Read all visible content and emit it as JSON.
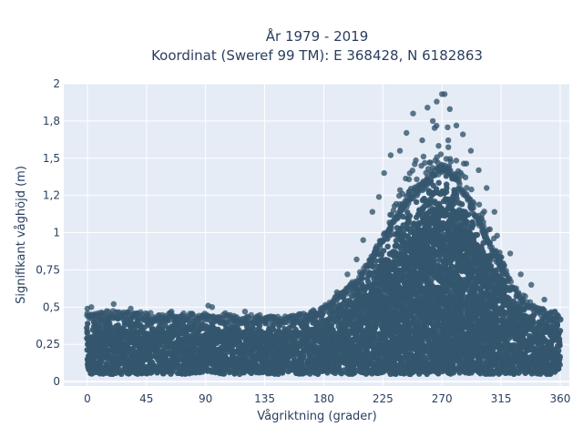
{
  "chart_data": {
    "type": "scatter",
    "title_line1": "År 1979 - 2019",
    "title_line2": "Koordinat (Sweref 99 TM): E 368428, N 6182863",
    "xlabel": "Vågriktning (grader)",
    "ylabel": "Signifikant våghöjd (m)",
    "xlim": [
      -18,
      367
    ],
    "ylim": [
      -0.03,
      2.0
    ],
    "xticks": [
      0,
      45,
      90,
      135,
      180,
      225,
      270,
      315,
      360
    ],
    "xtick_labels": [
      "0",
      "45",
      "90",
      "135",
      "180",
      "225",
      "270",
      "315",
      "360"
    ],
    "yticks": [
      0,
      0.25,
      0.5,
      0.75,
      1,
      1.25,
      1.5,
      1.75,
      2
    ],
    "ytick_labels": [
      "0",
      "0,25",
      "0,5",
      "0,75",
      "1",
      "1,2",
      "1,5",
      "1,8",
      "2"
    ],
    "grid": true,
    "colors": {
      "plot_bg": "#e5ecf6",
      "grid": "#ffffff",
      "marker": "#34566e",
      "text": "#2a3f5f"
    },
    "series": [
      {
        "envelope": [
          [
            0,
            0.05,
            0.42
          ],
          [
            10,
            0.05,
            0.43
          ],
          [
            20,
            0.05,
            0.44
          ],
          [
            30,
            0.05,
            0.43
          ],
          [
            40,
            0.05,
            0.43
          ],
          [
            50,
            0.05,
            0.42
          ],
          [
            60,
            0.05,
            0.42
          ],
          [
            70,
            0.05,
            0.42
          ],
          [
            80,
            0.05,
            0.42
          ],
          [
            90,
            0.05,
            0.42
          ],
          [
            100,
            0.05,
            0.41
          ],
          [
            110,
            0.05,
            0.41
          ],
          [
            120,
            0.05,
            0.41
          ],
          [
            130,
            0.05,
            0.41
          ],
          [
            140,
            0.05,
            0.4
          ],
          [
            150,
            0.05,
            0.4
          ],
          [
            160,
            0.05,
            0.41
          ],
          [
            170,
            0.05,
            0.44
          ],
          [
            180,
            0.05,
            0.48
          ],
          [
            190,
            0.05,
            0.55
          ],
          [
            200,
            0.05,
            0.62
          ],
          [
            210,
            0.05,
            0.72
          ],
          [
            220,
            0.05,
            0.86
          ],
          [
            230,
            0.05,
            1.02
          ],
          [
            240,
            0.05,
            1.16
          ],
          [
            250,
            0.05,
            1.26
          ],
          [
            260,
            0.05,
            1.34
          ],
          [
            265,
            0.05,
            1.4
          ],
          [
            270,
            0.05,
            1.42
          ],
          [
            275,
            0.05,
            1.4
          ],
          [
            280,
            0.05,
            1.36
          ],
          [
            290,
            0.05,
            1.22
          ],
          [
            300,
            0.05,
            1.02
          ],
          [
            310,
            0.05,
            0.84
          ],
          [
            320,
            0.05,
            0.68
          ],
          [
            330,
            0.05,
            0.56
          ],
          [
            340,
            0.05,
            0.48
          ],
          [
            350,
            0.05,
            0.44
          ],
          [
            360,
            0.05,
            0.42
          ]
        ],
        "outliers": [
          [
            270,
            1.93
          ],
          [
            272,
            1.93
          ],
          [
            266,
            1.88
          ],
          [
            259,
            1.84
          ],
          [
            276,
            1.83
          ],
          [
            248,
            1.8
          ],
          [
            281,
            1.72
          ],
          [
            263,
            1.75
          ],
          [
            243,
            1.67
          ],
          [
            286,
            1.66
          ],
          [
            255,
            1.62
          ],
          [
            292,
            1.55
          ],
          [
            238,
            1.55
          ],
          [
            231,
            1.52
          ],
          [
            298,
            1.42
          ],
          [
            304,
            1.3
          ],
          [
            226,
            1.4
          ],
          [
            222,
            1.24
          ],
          [
            310,
            1.14
          ],
          [
            217,
            1.14
          ],
          [
            312,
            0.98
          ],
          [
            322,
            0.86
          ],
          [
            330,
            0.72
          ],
          [
            338,
            0.65
          ],
          [
            348,
            0.55
          ],
          [
            356,
            0.47
          ],
          [
            210,
            0.95
          ],
          [
            205,
            0.82
          ],
          [
            198,
            0.72
          ],
          [
            190,
            0.6
          ],
          [
            0,
            0.49
          ],
          [
            3,
            0.5
          ],
          [
            20,
            0.52
          ],
          [
            33,
            0.49
          ],
          [
            64,
            0.47
          ],
          [
            92,
            0.51
          ],
          [
            95,
            0.5
          ],
          [
            105,
            0.46
          ],
          [
            120,
            0.47
          ],
          [
            140,
            0.43
          ],
          [
            159,
            0.44
          ],
          [
            172,
            0.45
          ]
        ]
      }
    ]
  }
}
